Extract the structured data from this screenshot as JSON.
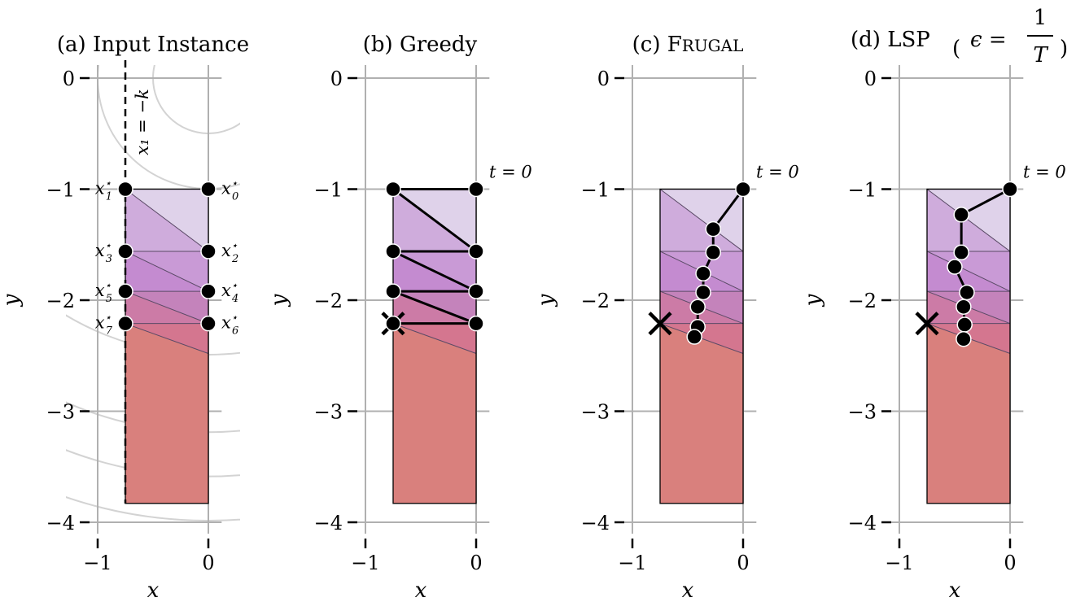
{
  "chart_data": [
    {
      "panel": "a",
      "type": "scatter",
      "title": "(a) Input Instance",
      "xlabel": "x",
      "ylabel": "y",
      "xticks": [
        "−1",
        "0"
      ],
      "yticks": [
        "0",
        "−1",
        "−2",
        "−3",
        "−4"
      ],
      "xlim": [
        -1.25,
        0.25
      ],
      "ylim": [
        -4.0,
        0.0
      ],
      "grid": true,
      "vline": {
        "x": -0.75,
        "label": "x₁ = −k"
      },
      "contours": [
        {
          "cx": 0,
          "cy": 0,
          "r": 0.5
        },
        {
          "cx": 0,
          "cy": 0,
          "r": 1.0
        },
        {
          "cx": 0,
          "cy": 0,
          "r": 2.5
        },
        {
          "cx": 0,
          "cy": 0,
          "r": 3.2
        },
        {
          "cx": 0,
          "cy": 0,
          "r": 3.6
        },
        {
          "cx": 0,
          "cy": 0,
          "r": 4.0
        }
      ],
      "points": [
        {
          "label": "x",
          "idx": "0",
          "x": 0.0,
          "y": -1.0
        },
        {
          "label": "x",
          "idx": "1",
          "x": -0.75,
          "y": -1.0
        },
        {
          "label": "x",
          "idx": "2",
          "x": 0.0,
          "y": -1.56
        },
        {
          "label": "x",
          "idx": "3",
          "x": -0.75,
          "y": -1.56
        },
        {
          "label": "x",
          "idx": "4",
          "x": 0.0,
          "y": -1.92
        },
        {
          "label": "x",
          "idx": "5",
          "x": -0.75,
          "y": -1.92
        },
        {
          "label": "x",
          "idx": "6",
          "x": 0.0,
          "y": -2.21
        },
        {
          "label": "x",
          "idx": "7",
          "x": -0.75,
          "y": -2.21
        }
      ]
    },
    {
      "panel": "b",
      "type": "line",
      "title": "(b) Greedy",
      "xlabel": "x",
      "ylabel": "y",
      "xticks": [
        "−1",
        "0"
      ],
      "yticks": [
        "0",
        "−1",
        "−2",
        "−3",
        "−4"
      ],
      "xlim": [
        -1.25,
        0.25
      ],
      "ylim": [
        -4.0,
        0.0
      ],
      "grid": true,
      "start_label": "t = 0",
      "path": [
        [
          0.0,
          -1.0
        ],
        [
          -0.75,
          -1.0
        ],
        [
          0.0,
          -1.56
        ],
        [
          -0.75,
          -1.56
        ],
        [
          0.0,
          -1.92
        ],
        [
          -0.75,
          -1.92
        ],
        [
          0.0,
          -2.21
        ],
        [
          -0.75,
          -2.21
        ]
      ],
      "cross": {
        "x": -0.75,
        "y": -2.21
      }
    },
    {
      "panel": "c",
      "type": "line",
      "title": "(c) Frugal",
      "xlabel": "x",
      "ylabel": "y",
      "xticks": [
        "−1",
        "0"
      ],
      "yticks": [
        "0",
        "−1",
        "−2",
        "−3",
        "−4"
      ],
      "xlim": [
        -1.25,
        0.25
      ],
      "ylim": [
        -4.0,
        0.0
      ],
      "grid": true,
      "start_label": "t = 0",
      "path": [
        [
          0.0,
          -1.0
        ],
        [
          -0.27,
          -1.36
        ],
        [
          -0.27,
          -1.57
        ],
        [
          -0.36,
          -1.76
        ],
        [
          -0.36,
          -1.93
        ],
        [
          -0.41,
          -2.06
        ],
        [
          -0.41,
          -2.24
        ],
        [
          -0.44,
          -2.33
        ]
      ],
      "cross": {
        "x": -0.75,
        "y": -2.21
      }
    },
    {
      "panel": "d",
      "type": "line",
      "title": "(d) LSP",
      "xlabel": "x",
      "ylabel": "y",
      "xticks": [
        "−1",
        "0"
      ],
      "yticks": [
        "0",
        "−1",
        "−2",
        "−3",
        "−4"
      ],
      "xlim": [
        -1.25,
        0.25
      ],
      "ylim": [
        -4.0,
        0.0
      ],
      "grid": true,
      "start_label": "t = 0",
      "path": [
        [
          0.0,
          -1.0
        ],
        [
          -0.44,
          -1.23
        ],
        [
          -0.44,
          -1.57
        ],
        [
          -0.5,
          -1.7
        ],
        [
          -0.39,
          -1.93
        ],
        [
          -0.42,
          -2.06
        ],
        [
          -0.41,
          -2.22
        ],
        [
          -0.42,
          -2.35
        ]
      ],
      "cross": {
        "x": -0.75,
        "y": -2.21
      }
    }
  ],
  "region": {
    "x_left": -0.75,
    "x_right": 0.0,
    "y_bottom": -3.83,
    "bands": [
      {
        "y_top_left": -1.0,
        "y_top_right": -1.0,
        "color": "#dfd2ea"
      },
      {
        "y_top_left": -1.0,
        "y_top_right": -1.56,
        "color": "#cfacdc"
      },
      {
        "y_top_left": -1.56,
        "y_top_right": -1.56,
        "color": "#c99ad6"
      },
      {
        "y_top_left": -1.56,
        "y_top_right": -1.92,
        "color": "#c48bd0"
      },
      {
        "y_top_left": -1.92,
        "y_top_right": -1.92,
        "color": "#c483bb"
      },
      {
        "y_top_left": -1.92,
        "y_top_right": -2.21,
        "color": "#cc7ba6"
      },
      {
        "y_top_left": -2.21,
        "y_top_right": -2.21,
        "color": "#d4768f"
      },
      {
        "y_top_left": -2.21,
        "y_top_right": -2.48,
        "color": "#d9807d"
      }
    ],
    "base_color": "#db877c"
  },
  "labels": {
    "title_a": "(a) Input Instance",
    "title_b": "(b) Greedy",
    "title_c_prefix": "(c) F",
    "title_c_rest": "RUGAL",
    "title_d_prefix": "(d) LSP",
    "title_d_eps": "ϵ =",
    "title_d_num": "1",
    "title_d_den": "T"
  },
  "colors": {
    "grid": "#b0b0b0",
    "contour": "#d3d3d3",
    "marker": "#000000"
  }
}
